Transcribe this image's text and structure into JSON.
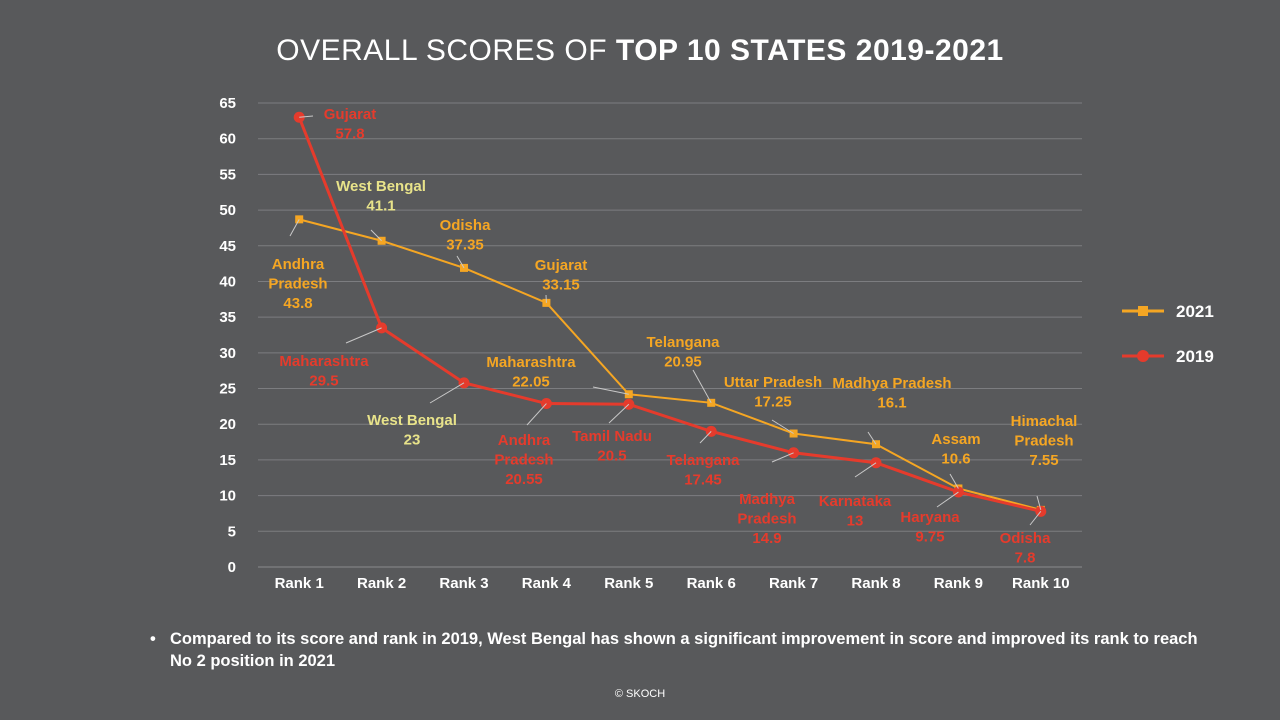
{
  "title": {
    "regular": "OVERALL SCORES OF ",
    "bold": "TOP 10 STATES 2019-2021"
  },
  "chart_data": {
    "type": "line",
    "categories": [
      "Rank 1",
      "Rank 2",
      "Rank 3",
      "Rank 4",
      "Rank 5",
      "Rank 6",
      "Rank 7",
      "Rank 8",
      "Rank 9",
      "Rank 10"
    ],
    "ylim": [
      0,
      65
    ],
    "yticks": [
      0,
      5,
      10,
      15,
      20,
      25,
      30,
      35,
      40,
      45,
      50,
      55,
      60,
      65
    ],
    "grid": true,
    "legend_position": "right",
    "series": [
      {
        "name": "2021",
        "color": "#f5a623",
        "marker": "square",
        "values": [
          48.7,
          45.7,
          41.9,
          37.0,
          24.2,
          23.0,
          18.7,
          17.2,
          11.0,
          8.0
        ],
        "point_labels": [
          [
            "Andhra",
            "Pradesh",
            "43.8"
          ],
          [
            "West Bengal",
            "41.1"
          ],
          [
            "Odisha",
            "37.35"
          ],
          [
            "Gujarat",
            "33.15"
          ],
          [
            "Maharashtra",
            "22.05"
          ],
          [
            "Telangana",
            "20.95"
          ],
          [
            "Uttar Pradesh",
            "17.25"
          ],
          [
            "Madhya Pradesh",
            "16.1"
          ],
          [
            "Assam",
            "10.6"
          ],
          [
            "Himachal",
            "Pradesh",
            "7.55"
          ]
        ]
      },
      {
        "name": "2019",
        "color": "#e53b2c",
        "marker": "circle",
        "values": [
          63.0,
          33.5,
          25.8,
          22.9,
          22.8,
          19.0,
          16.0,
          14.6,
          10.5,
          7.8
        ],
        "point_labels": [
          [
            "Gujarat",
            "57.8"
          ],
          [
            "Maharashtra",
            "29.5"
          ],
          [
            "West Bengal",
            "23"
          ],
          [
            "Andhra",
            "Pradesh",
            "20.55"
          ],
          [
            "Tamil Nadu",
            "20.5"
          ],
          [
            "Telangana",
            "17.45"
          ],
          [
            "Madhya",
            "Pradesh",
            "14.9"
          ],
          [
            "Karnataka",
            "13"
          ],
          [
            "Haryana",
            "9.75"
          ],
          [
            "Odisha",
            "7.8"
          ]
        ]
      }
    ]
  },
  "label_colors": {
    "orange": "#f5a623",
    "red": "#e53b2c",
    "yellow": "#e8e38a"
  },
  "note": "Compared to its score and rank in 2019, West Bengal has shown a significant improvement in score and improved its rank to reach No 2 position in 2021",
  "note_bullet": "•",
  "copyright": "© SKOCH"
}
